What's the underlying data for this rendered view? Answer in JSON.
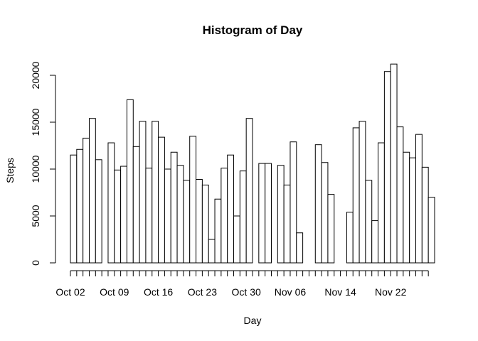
{
  "chart_data": {
    "type": "bar",
    "title": "Histogram of Day",
    "xlabel": "Day",
    "ylabel": "Steps",
    "ylim": [
      0,
      21194
    ],
    "yticks": [
      0,
      5000,
      10000,
      15000,
      20000
    ],
    "xtick_labels": [
      {
        "index": 0,
        "label": "Oct 02"
      },
      {
        "index": 7,
        "label": "Oct 09"
      },
      {
        "index": 14,
        "label": "Oct 16"
      },
      {
        "index": 21,
        "label": "Oct 23"
      },
      {
        "index": 28,
        "label": "Oct 30"
      },
      {
        "index": 35,
        "label": "Nov 06"
      },
      {
        "index": 43,
        "label": "Nov 14"
      },
      {
        "index": 51,
        "label": "Nov 22"
      }
    ],
    "grid": false,
    "values": [
      11500,
      12100,
      13300,
      15400,
      11000,
      0,
      12800,
      9900,
      10300,
      17400,
      12400,
      15100,
      10100,
      15100,
      13400,
      10000,
      11800,
      10400,
      8800,
      13500,
      8900,
      8300,
      2500,
      6800,
      10100,
      11500,
      5000,
      9800,
      15400,
      0,
      10600,
      10600,
      0,
      10400,
      8300,
      12900,
      3200,
      0,
      0,
      12600,
      10700,
      7300,
      0,
      0,
      5400,
      14400,
      15100,
      8800,
      4500,
      12800,
      20400,
      21200,
      14500,
      11800,
      11200,
      13700,
      10200,
      7000
    ]
  }
}
